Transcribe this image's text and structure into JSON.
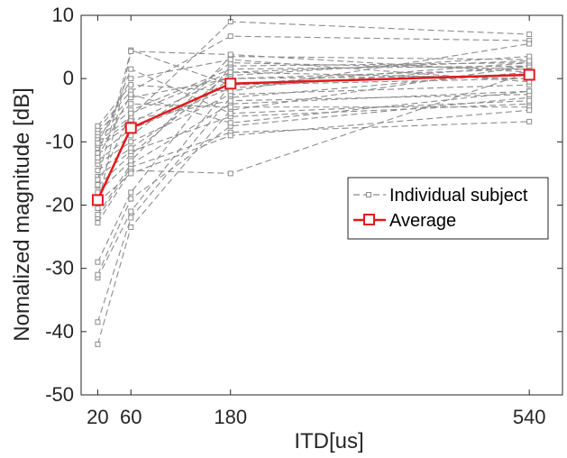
{
  "chart_data": {
    "type": "line",
    "xlabel": "ITD[us]",
    "ylabel": "Nomalized magnitude [dB]",
    "x": [
      20,
      60,
      180,
      540
    ],
    "xlim": [
      0,
      580
    ],
    "xticks": [
      20,
      60,
      180,
      540
    ],
    "ylim": [
      -50,
      10
    ],
    "yticks": [
      -50,
      -40,
      -30,
      -20,
      -10,
      0,
      10
    ],
    "grid": false,
    "legend_position": "right",
    "colors": {
      "individual": "#8c8c8c",
      "average": "#e3191c"
    },
    "series": [
      {
        "name": "Average",
        "values": [
          -19.2,
          -7.8,
          -0.8,
          0.6
        ]
      },
      {
        "name": "Individual subject",
        "subjects": [
          [
            -42.0,
            -23.5,
            -5.0,
            2.0
          ],
          [
            -38.5,
            -22.0,
            -3.0,
            1.0
          ],
          [
            -31.5,
            -21.0,
            -1.0,
            0.0
          ],
          [
            -31.0,
            -19.0,
            -7.5,
            -3.0
          ],
          [
            -29.0,
            -18.0,
            2.0,
            2.5
          ],
          [
            -22.8,
            -14.5,
            -15.0,
            1.0
          ],
          [
            -22.0,
            -14.0,
            -8.5,
            -6.8
          ],
          [
            -21.5,
            -13.5,
            -4.0,
            -2.0
          ],
          [
            -18.0,
            -13.0,
            3.5,
            3.0
          ],
          [
            -17.0,
            -12.0,
            1.0,
            0.0
          ],
          [
            -15.5,
            -11.5,
            -6.0,
            -4.0
          ],
          [
            -14.5,
            -11.0,
            0.0,
            1.5
          ],
          [
            -13.5,
            -10.0,
            -2.5,
            -1.0
          ],
          [
            -13.0,
            -9.0,
            2.5,
            1.5
          ],
          [
            -12.0,
            -8.0,
            -1.5,
            2.0
          ],
          [
            -11.0,
            -7.0,
            0.5,
            3.5
          ],
          [
            -10.5,
            -6.5,
            -3.5,
            -2.5
          ],
          [
            -10.0,
            -6.0,
            9.0,
            7.0
          ],
          [
            -9.5,
            -5.0,
            1.5,
            2.0
          ],
          [
            -9.0,
            -4.0,
            -4.5,
            -4.5
          ],
          [
            -8.5,
            -3.0,
            0.0,
            0.5
          ],
          [
            -8.0,
            -2.0,
            6.7,
            6.0
          ],
          [
            -7.5,
            -1.0,
            -2.0,
            5.5
          ],
          [
            -10.2,
            0.0,
            3.0,
            -0.5
          ],
          [
            -11.8,
            1.5,
            -5.5,
            -3.5
          ],
          [
            -16.0,
            4.5,
            -1.0,
            2.5
          ],
          [
            -20.5,
            4.3,
            3.8,
            1.0
          ],
          [
            -19.5,
            -15.0,
            -9.0,
            -5.0
          ],
          [
            -16.8,
            -5.5,
            1.0,
            2.8
          ],
          [
            -12.5,
            -2.5,
            -7.0,
            -2.0
          ]
        ]
      }
    ]
  }
}
